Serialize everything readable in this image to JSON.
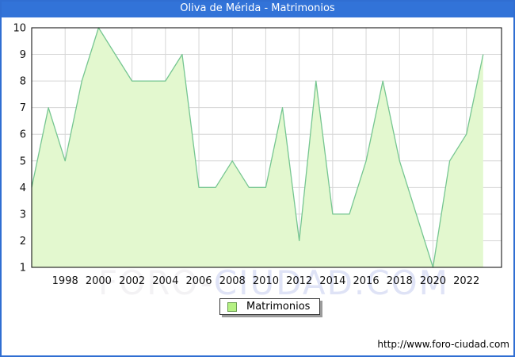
{
  "window": {
    "title": "Oliva de Mérida - Matrimonios",
    "footer_url": "http://www.foro-ciudad.com",
    "watermark_left": "FORO-",
    "watermark_right": "CIUDAD.COM"
  },
  "legend": {
    "label": "Matrimonios"
  },
  "colors": {
    "titlebar": "#3273d8",
    "outer_border": "#306ed2",
    "plot_border": "#000000",
    "grid": "#d6d6d6",
    "line": "#76c691",
    "fill": "#e3f8cf",
    "legend_swatch": "#b5f183",
    "legend_swatch_border": "#6a9e4f",
    "watermark_left": "#f3f2f4",
    "watermark_right": "#dfe3f6",
    "tick_label": "#111111"
  },
  "chart_data": {
    "type": "area",
    "title": "Oliva de Mérida - Matrimonios",
    "series_name": "Matrimonios",
    "x": [
      1996,
      1997,
      1998,
      1999,
      2000,
      2001,
      2002,
      2003,
      2004,
      2005,
      2006,
      2007,
      2008,
      2009,
      2010,
      2011,
      2012,
      2013,
      2014,
      2015,
      2016,
      2017,
      2018,
      2019,
      2020,
      2021,
      2022,
      2023
    ],
    "values": [
      4,
      7,
      5,
      8,
      10,
      9,
      8,
      8,
      8,
      9,
      4,
      4,
      5,
      4,
      4,
      7,
      2,
      8,
      3,
      3,
      5,
      8,
      5,
      3,
      1,
      5,
      6,
      9
    ],
    "xlim": [
      1996,
      2024.1
    ],
    "ylim": [
      1,
      10
    ],
    "x_ticks": [
      1998,
      2000,
      2002,
      2004,
      2006,
      2008,
      2010,
      2012,
      2014,
      2016,
      2018,
      2020,
      2022
    ],
    "y_ticks": [
      1,
      2,
      3,
      4,
      5,
      6,
      7,
      8,
      9,
      10
    ],
    "grid": true,
    "legend_position": "bottom-center",
    "xlabel": "",
    "ylabel": ""
  }
}
